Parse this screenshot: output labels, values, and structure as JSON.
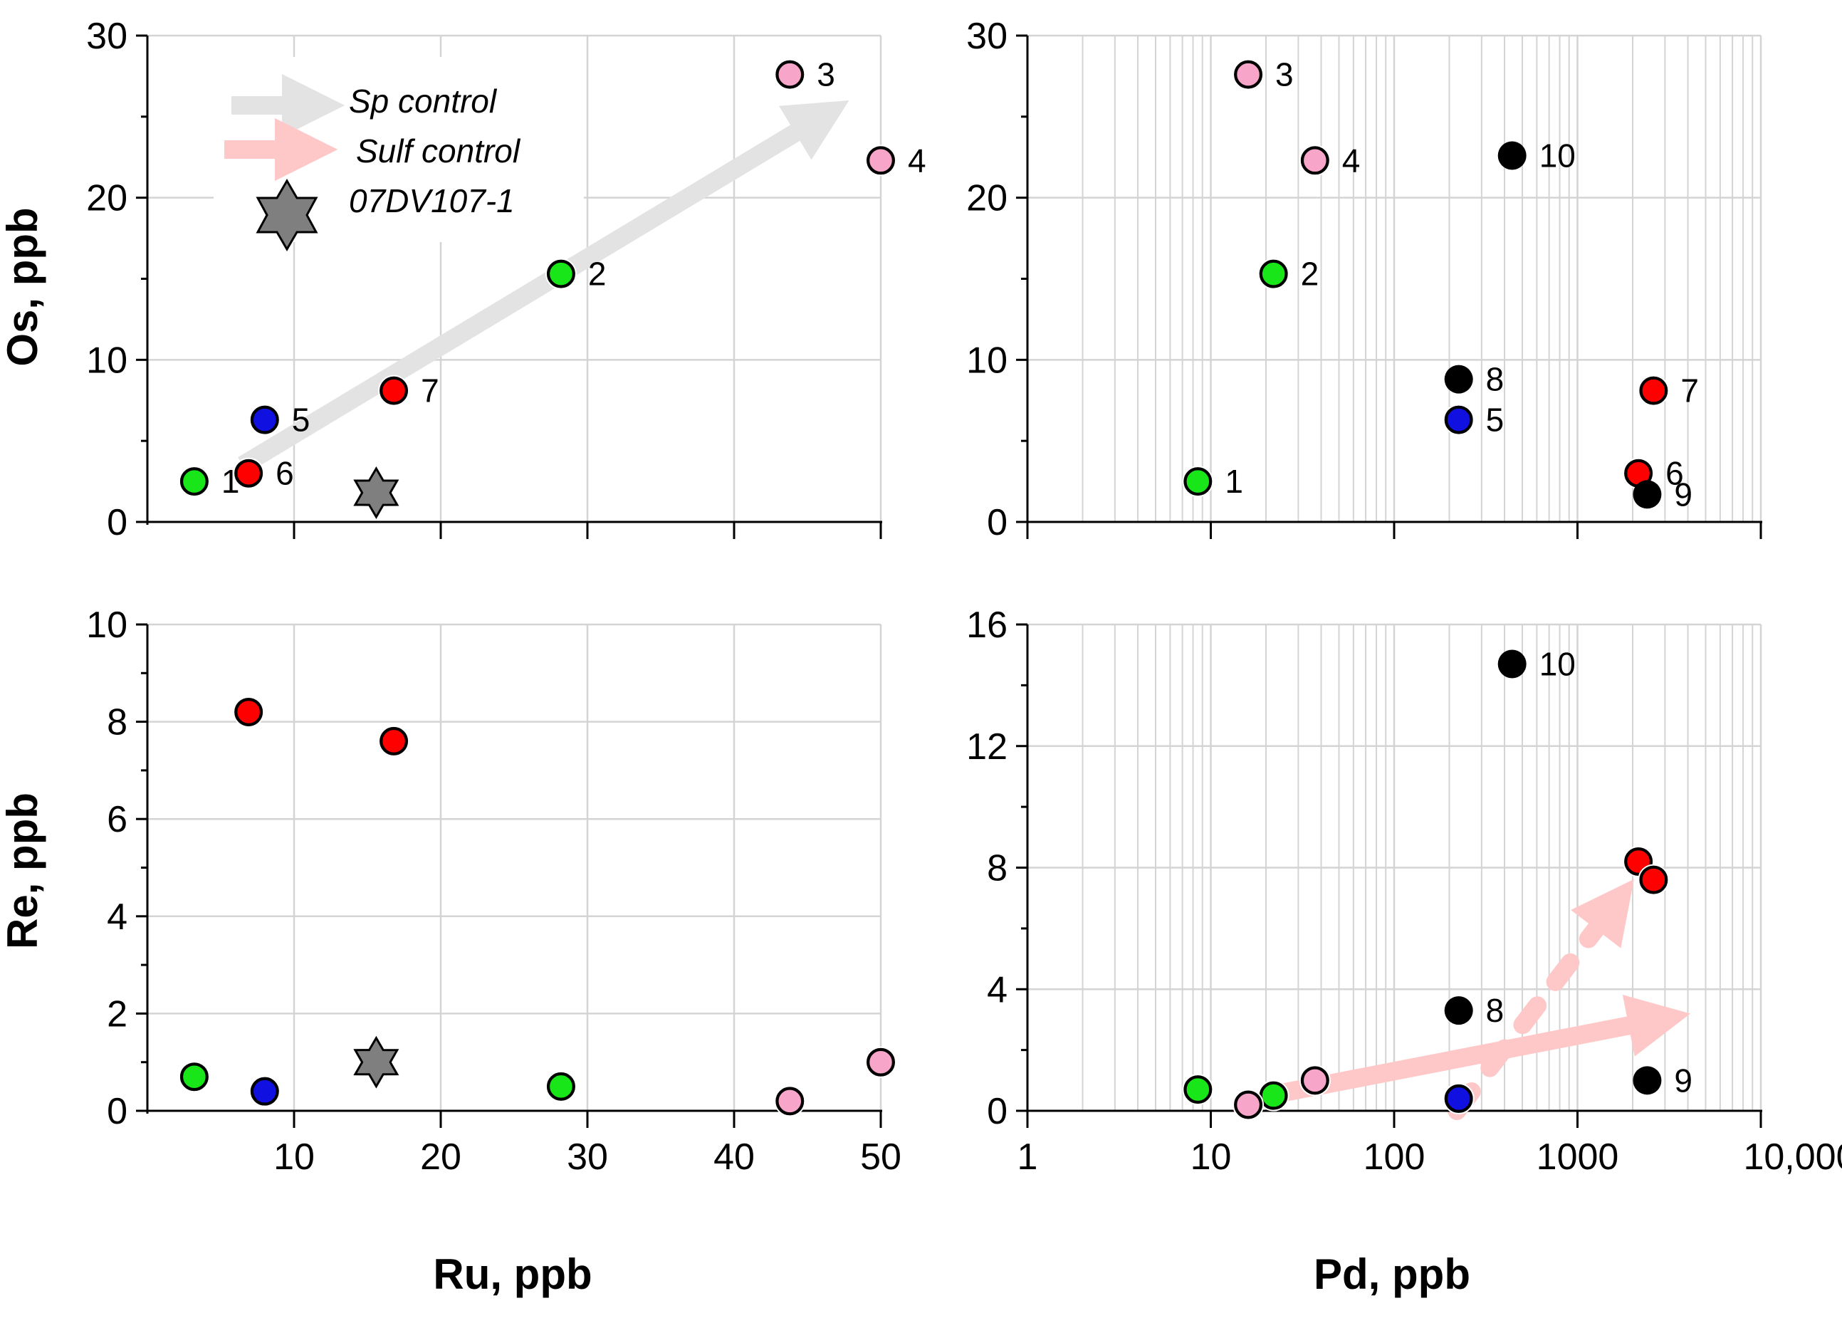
{
  "colors": {
    "green": "#19e619",
    "blue": "#1010e0",
    "red": "#ff0000",
    "pink": "#f7a6c9",
    "black": "#000000",
    "star": "#7f7f7f",
    "sp_arrow": "#e3e3e3",
    "sulf_arrow": "#ffc8c8",
    "grid": "#d4d4d4"
  },
  "legend": {
    "items": [
      {
        "label": "Sp control",
        "icon": "grey-arrow-icon"
      },
      {
        "label": "Sulf control",
        "icon": "pink-arrow-icon"
      },
      {
        "label": "07DV107-1",
        "icon": "star-icon"
      }
    ]
  },
  "chart_data": [
    {
      "id": "os-vs-ru",
      "type": "scatter",
      "xscale": "linear",
      "xlim": [
        0,
        50
      ],
      "ylim": [
        0,
        30
      ],
      "xticks": [],
      "yticks": [
        0,
        10,
        20,
        30
      ],
      "ytick_labels": [
        "0",
        "10",
        "20",
        "30"
      ],
      "xlabel": "",
      "ylabel": "Os, ppb",
      "points": [
        {
          "id": "1",
          "x": 3.2,
          "y": 2.5,
          "color": "green",
          "label": "1"
        },
        {
          "id": "2",
          "x": 28.2,
          "y": 15.3,
          "color": "green",
          "label": "2"
        },
        {
          "id": "3",
          "x": 43.8,
          "y": 27.6,
          "color": "pink",
          "label": "3"
        },
        {
          "id": "4",
          "x": 50,
          "y": 22.3,
          "color": "pink",
          "label": "4"
        },
        {
          "id": "5",
          "x": 8,
          "y": 6.3,
          "color": "blue",
          "label": "5"
        },
        {
          "id": "6",
          "x": 6.9,
          "y": 3,
          "color": "red",
          "label": "6"
        },
        {
          "id": "7",
          "x": 16.8,
          "y": 8.1,
          "color": "red",
          "label": "7"
        }
      ],
      "star": {
        "x": 15.6,
        "y": 1.8
      },
      "arrow": {
        "name": "Sp control",
        "color": "sp_arrow",
        "from": [
          6.5,
          3.5
        ],
        "to": [
          46,
          25
        ],
        "style": "solid"
      }
    },
    {
      "id": "os-vs-pd",
      "type": "scatter",
      "xscale": "log",
      "xlim": [
        1,
        10000
      ],
      "ylim": [
        0,
        30
      ],
      "xticks": [],
      "yticks": [
        0,
        10,
        20,
        30
      ],
      "ytick_labels": [
        "0",
        "10",
        "20",
        "30"
      ],
      "xlabel": "",
      "ylabel": "",
      "points": [
        {
          "id": "1",
          "x": 8.5,
          "y": 2.5,
          "color": "green",
          "label": "1"
        },
        {
          "id": "2",
          "x": 22,
          "y": 15.3,
          "color": "green",
          "label": "2"
        },
        {
          "id": "3",
          "x": 16,
          "y": 27.6,
          "color": "pink",
          "label": "3"
        },
        {
          "id": "4",
          "x": 37,
          "y": 22.3,
          "color": "pink",
          "label": "4"
        },
        {
          "id": "5",
          "x": 225,
          "y": 6.3,
          "color": "blue",
          "label": "5"
        },
        {
          "id": "6",
          "x": 2150,
          "y": 3,
          "color": "red",
          "label": "6"
        },
        {
          "id": "7",
          "x": 2600,
          "y": 8.1,
          "color": "red",
          "label": "7"
        },
        {
          "id": "8",
          "x": 225,
          "y": 8.8,
          "color": "black",
          "label": "8"
        },
        {
          "id": "9",
          "x": 2400,
          "y": 1.7,
          "color": "black",
          "label": "9"
        },
        {
          "id": "10",
          "x": 440,
          "y": 22.6,
          "color": "black",
          "label": "10"
        }
      ]
    },
    {
      "id": "re-vs-ru",
      "type": "scatter",
      "xscale": "linear",
      "xlim": [
        0,
        50
      ],
      "ylim": [
        0,
        10
      ],
      "xticks": [
        10,
        20,
        30,
        40,
        50
      ],
      "xtick_labels": [
        "10",
        "20",
        "30",
        "40",
        "50"
      ],
      "yticks": [
        0,
        2,
        4,
        6,
        8,
        10
      ],
      "ytick_labels": [
        "0",
        "2",
        "4",
        "6",
        "8",
        "10"
      ],
      "xlabel": "Ru, ppb",
      "ylabel": "Re, ppb",
      "points": [
        {
          "id": "1",
          "x": 3.2,
          "y": 0.7,
          "color": "green",
          "label": ""
        },
        {
          "id": "2",
          "x": 28.2,
          "y": 0.5,
          "color": "green",
          "label": ""
        },
        {
          "id": "3",
          "x": 43.8,
          "y": 0.2,
          "color": "pink",
          "label": ""
        },
        {
          "id": "4",
          "x": 50,
          "y": 1,
          "color": "pink",
          "label": ""
        },
        {
          "id": "5",
          "x": 8,
          "y": 0.4,
          "color": "blue",
          "label": ""
        },
        {
          "id": "6",
          "x": 6.9,
          "y": 8.2,
          "color": "red",
          "label": ""
        },
        {
          "id": "7",
          "x": 16.8,
          "y": 7.6,
          "color": "red",
          "label": ""
        }
      ],
      "star": {
        "x": 15.6,
        "y": 1
      }
    },
    {
      "id": "re-vs-pd",
      "type": "scatter",
      "xscale": "log",
      "xlim": [
        1,
        10000
      ],
      "ylim": [
        0,
        16
      ],
      "xticks": [
        1,
        10,
        100,
        1000,
        10000
      ],
      "xtick_labels": [
        "1",
        "10",
        "100",
        "1000",
        "10,000"
      ],
      "yticks": [
        0,
        4,
        8,
        12,
        16
      ],
      "ytick_labels": [
        "0",
        "4",
        "8",
        "12",
        "16"
      ],
      "xlabel": "Pd, ppb",
      "ylabel": "",
      "points": [
        {
          "id": "1",
          "x": 8.5,
          "y": 0.7,
          "color": "green",
          "label": ""
        },
        {
          "id": "2",
          "x": 22,
          "y": 0.5,
          "color": "green",
          "label": ""
        },
        {
          "id": "3",
          "x": 16,
          "y": 0.2,
          "color": "pink",
          "label": ""
        },
        {
          "id": "4",
          "x": 37,
          "y": 1,
          "color": "pink",
          "label": ""
        },
        {
          "id": "5",
          "x": 225,
          "y": 0.4,
          "color": "blue",
          "label": ""
        },
        {
          "id": "6",
          "x": 2150,
          "y": 8.2,
          "color": "red",
          "label": ""
        },
        {
          "id": "7",
          "x": 2600,
          "y": 7.6,
          "color": "red",
          "label": ""
        },
        {
          "id": "8",
          "x": 225,
          "y": 3.3,
          "color": "black",
          "label": "8"
        },
        {
          "id": "9",
          "x": 2400,
          "y": 1,
          "color": "black",
          "label": "9"
        },
        {
          "id": "10",
          "x": 440,
          "y": 14.7,
          "color": "black",
          "label": "10"
        }
      ],
      "arrows": [
        {
          "name": "Sulf control",
          "color": "sulf_arrow",
          "from": [
            25,
            0.6
          ],
          "to": [
            2800,
            3
          ],
          "style": "solid"
        },
        {
          "name": "Sulf control",
          "color": "sulf_arrow",
          "from": [
            220,
            0
          ],
          "to": [
            1600,
            6.8
          ],
          "style": "dashed"
        }
      ]
    }
  ]
}
